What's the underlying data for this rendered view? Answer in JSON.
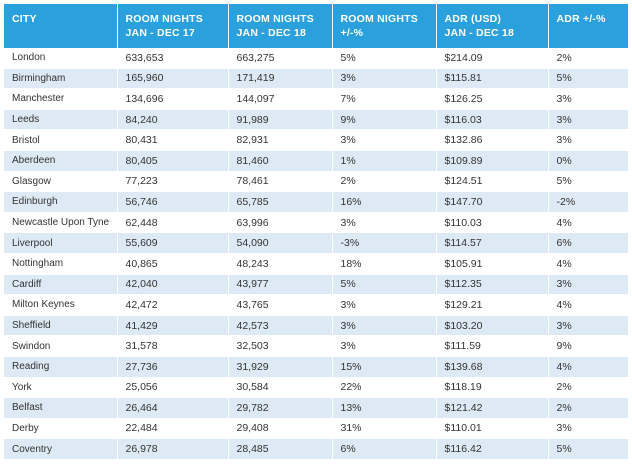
{
  "headers": [
    {
      "line1": "CITY",
      "line2": ""
    },
    {
      "line1": "ROOM NIGHTS",
      "line2": "JAN - DEC 17"
    },
    {
      "line1": "ROOM NIGHTS",
      "line2": "JAN - DEC 18"
    },
    {
      "line1": "ROOM NIGHTS",
      "line2": "+/-%"
    },
    {
      "line1": "ADR (USD)",
      "line2": "JAN - DEC 18"
    },
    {
      "line1": "ADR +/-%",
      "line2": ""
    }
  ],
  "rows": [
    [
      "London",
      "633,653",
      "663,275",
      "5%",
      "$214.09",
      "2%"
    ],
    [
      "Birmingham",
      "165,960",
      "171,419",
      "3%",
      "$115.81",
      "5%"
    ],
    [
      "Manchester",
      "134,696",
      "144,097",
      "7%",
      "$126.25",
      "3%"
    ],
    [
      "Leeds",
      "84,240",
      "91,989",
      "9%",
      "$116.03",
      "3%"
    ],
    [
      "Bristol",
      "80,431",
      "82,931",
      "3%",
      "$132.86",
      "3%"
    ],
    [
      "Aberdeen",
      "80,405",
      "81,460",
      "1%",
      "$109.89",
      "0%"
    ],
    [
      "Glasgow",
      "77,223",
      "78,461",
      "2%",
      "$124.51",
      "5%"
    ],
    [
      "Edinburgh",
      "56,746",
      "65,785",
      "16%",
      "$147.70",
      "-2%"
    ],
    [
      "Newcastle Upon Tyne",
      "62,448",
      "63,996",
      "3%",
      "$110.03",
      "4%"
    ],
    [
      "Liverpool",
      "55,609",
      "54,090",
      "-3%",
      "$114.57",
      "6%"
    ],
    [
      "Nottingham",
      "40,865",
      "48,243",
      "18%",
      "$105.91",
      "4%"
    ],
    [
      "Cardiff",
      "42,040",
      "43,977",
      "5%",
      "$112.35",
      "3%"
    ],
    [
      "Milton Keynes",
      "42,472",
      "43,765",
      "3%",
      "$129.21",
      "4%"
    ],
    [
      "Sheffield",
      "41,429",
      "42,573",
      "3%",
      "$103.20",
      "3%"
    ],
    [
      "Swindon",
      "31,578",
      "32,503",
      "3%",
      "$111.59",
      "9%"
    ],
    [
      "Reading",
      "27,736",
      "31,929",
      "15%",
      "$139.68",
      "4%"
    ],
    [
      "York",
      "25,056",
      "30,584",
      "22%",
      "$118.19",
      "2%"
    ],
    [
      "Belfast",
      "26,464",
      "29,782",
      "13%",
      "$121.42",
      "2%"
    ],
    [
      "Derby",
      "22,484",
      "29,408",
      "31%",
      "$110.01",
      "3%"
    ],
    [
      "Coventry",
      "26,978",
      "28,485",
      "6%",
      "$116.42",
      "5%"
    ]
  ]
}
